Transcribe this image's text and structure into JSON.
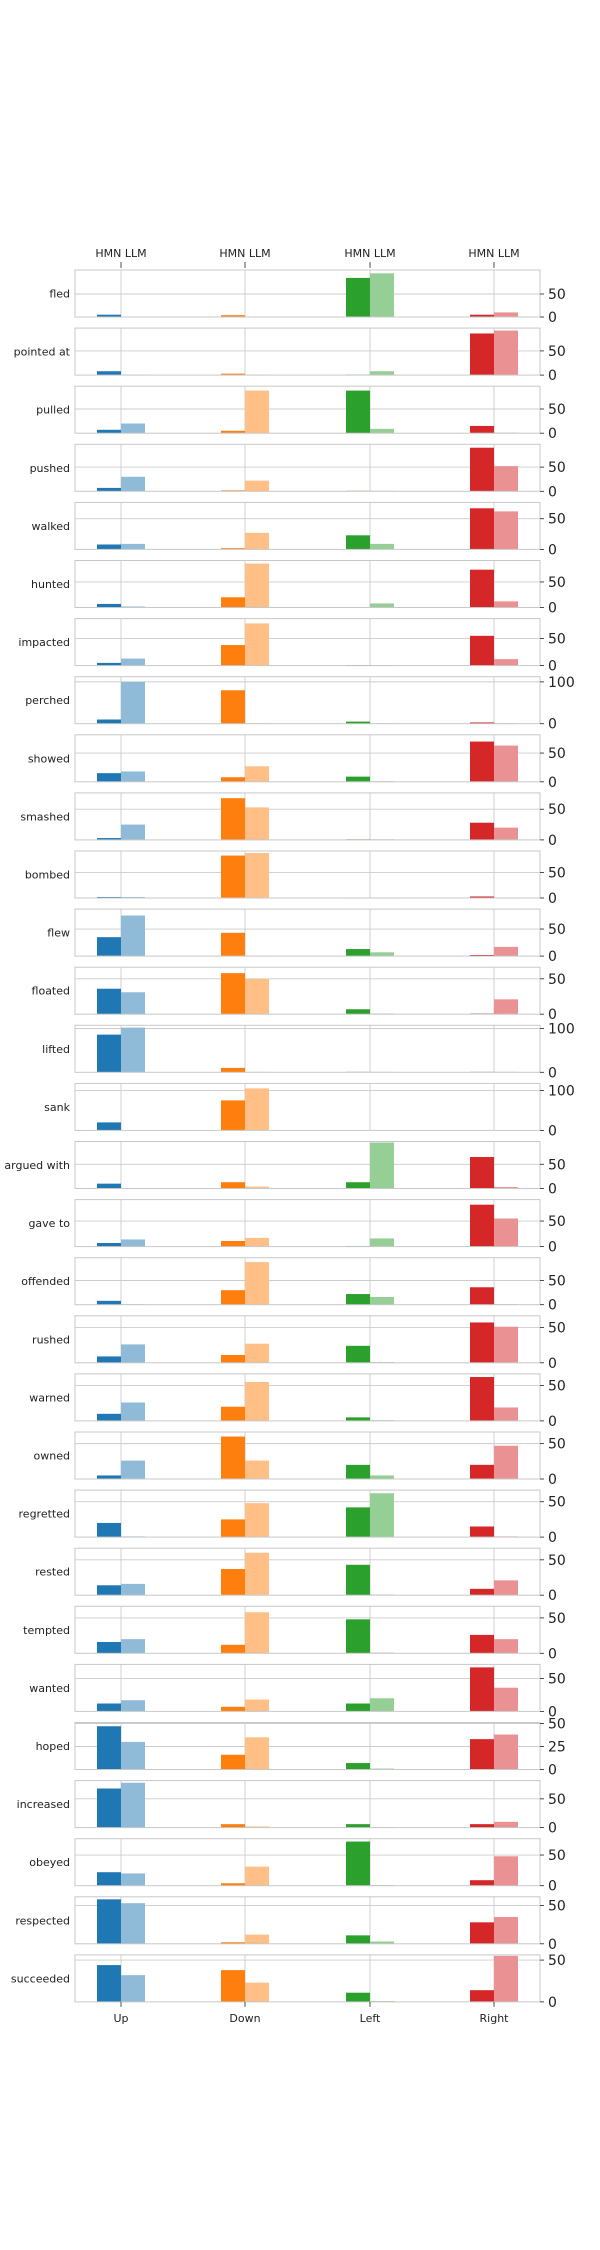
{
  "chart_data": {
    "type": "bar",
    "categories": [
      "Up",
      "Down",
      "Left",
      "Right"
    ],
    "top_tick_label": "HMN LLM",
    "series": [
      {
        "name": "HMN"
      },
      {
        "name": "LLM"
      }
    ],
    "colors": {
      "Up": [
        "#1f77b4",
        "#8fbbd9"
      ],
      "Down": [
        "#ff7f0e",
        "#ffbf86"
      ],
      "Left": [
        "#2ca02c",
        "#95cf95"
      ],
      "Right": [
        "#d62728",
        "#ea9293"
      ]
    },
    "grid": true,
    "rows": [
      {
        "label": "fled",
        "yticks": [
          0,
          50
        ],
        "ymax": 100,
        "values": [
          [
            5,
            1
          ],
          [
            4,
            1
          ],
          [
            85,
            95
          ],
          [
            5,
            10
          ]
        ]
      },
      {
        "label": "pointed at",
        "yticks": [
          0,
          50
        ],
        "ymax": 95,
        "values": [
          [
            8,
            1
          ],
          [
            3,
            1
          ],
          [
            1,
            8
          ],
          [
            86,
            92
          ]
        ]
      },
      {
        "label": "pulled",
        "yticks": [
          0,
          50
        ],
        "ymax": 95,
        "values": [
          [
            7,
            20
          ],
          [
            5,
            88
          ],
          [
            88,
            9
          ],
          [
            15,
            1
          ]
        ]
      },
      {
        "label": "pushed",
        "yticks": [
          0,
          50
        ],
        "ymax": 95,
        "values": [
          [
            7,
            30
          ],
          [
            2,
            22
          ],
          [
            1,
            1
          ],
          [
            90,
            52
          ]
        ]
      },
      {
        "label": "walked",
        "yticks": [
          0,
          50
        ],
        "ymax": 75,
        "values": [
          [
            8,
            9
          ],
          [
            2,
            27
          ],
          [
            23,
            9
          ],
          [
            67,
            62
          ]
        ]
      },
      {
        "label": "hunted",
        "yticks": [
          0,
          50
        ],
        "ymax": 90,
        "values": [
          [
            7,
            2
          ],
          [
            20,
            86
          ],
          [
            1,
            8
          ],
          [
            74,
            12
          ]
        ]
      },
      {
        "label": "impacted",
        "yticks": [
          0,
          50
        ],
        "ymax": 85,
        "values": [
          [
            5,
            13
          ],
          [
            38,
            78
          ],
          [
            1,
            1
          ],
          [
            55,
            12
          ]
        ]
      },
      {
        "label": "perched",
        "yticks": [
          0,
          100
        ],
        "ymax": 110,
        "values": [
          [
            10,
            100
          ],
          [
            80,
            1
          ],
          [
            5,
            1
          ],
          [
            3,
            1
          ]
        ]
      },
      {
        "label": "showed",
        "yticks": [
          0,
          50
        ],
        "ymax": 80,
        "values": [
          [
            15,
            18
          ],
          [
            8,
            27
          ],
          [
            9,
            1
          ],
          [
            70,
            63
          ]
        ]
      },
      {
        "label": "smashed",
        "yticks": [
          0,
          50
        ],
        "ymax": 75,
        "values": [
          [
            3,
            25
          ],
          [
            68,
            53
          ],
          [
            1,
            1
          ],
          [
            28,
            20
          ]
        ]
      },
      {
        "label": "bombed",
        "yticks": [
          0,
          50
        ],
        "ymax": 90,
        "values": [
          [
            2,
            2
          ],
          [
            83,
            88
          ],
          [
            1,
            1
          ],
          [
            3,
            1
          ]
        ]
      },
      {
        "label": "flew",
        "yticks": [
          0,
          50
        ],
        "ymax": 85,
        "values": [
          [
            35,
            75
          ],
          [
            43,
            1
          ],
          [
            13,
            7
          ],
          [
            2,
            17
          ]
        ]
      },
      {
        "label": "floated",
        "yticks": [
          0,
          50
        ],
        "ymax": 65,
        "values": [
          [
            36,
            31
          ],
          [
            58,
            50
          ],
          [
            7,
            1
          ],
          [
            1,
            21
          ]
        ]
      },
      {
        "label": "lifted",
        "yticks": [
          0,
          100
        ],
        "ymax": 105,
        "values": [
          [
            86,
            102
          ],
          [
            10,
            1
          ],
          [
            1,
            1
          ],
          [
            1,
            1
          ]
        ]
      },
      {
        "label": "sank",
        "yticks": [
          0,
          100
        ],
        "ymax": 115,
        "values": [
          [
            20,
            1
          ],
          [
            75,
            105
          ],
          [
            1,
            1
          ],
          [
            1,
            1
          ]
        ]
      },
      {
        "label": "argued with",
        "yticks": [
          0,
          50
        ],
        "ymax": 95,
        "values": [
          [
            10,
            1
          ],
          [
            13,
            4
          ],
          [
            13,
            95
          ],
          [
            65,
            3
          ]
        ]
      },
      {
        "label": "gave to",
        "yticks": [
          0,
          50
        ],
        "ymax": 90,
        "values": [
          [
            7,
            14
          ],
          [
            11,
            17
          ],
          [
            1,
            16
          ],
          [
            82,
            55
          ]
        ]
      },
      {
        "label": "offended",
        "yticks": [
          0,
          50
        ],
        "ymax": 95,
        "values": [
          [
            8,
            1
          ],
          [
            30,
            88
          ],
          [
            22,
            16
          ],
          [
            36,
            1
          ]
        ]
      },
      {
        "label": "rushed",
        "yticks": [
          0,
          50
        ],
        "ymax": 65,
        "values": [
          [
            9,
            26
          ],
          [
            11,
            27
          ],
          [
            24,
            1
          ],
          [
            57,
            51
          ]
        ]
      },
      {
        "label": "warned",
        "yticks": [
          0,
          50
        ],
        "ymax": 65,
        "values": [
          [
            10,
            26
          ],
          [
            20,
            55
          ],
          [
            5,
            1
          ],
          [
            62,
            19
          ]
        ]
      },
      {
        "label": "owned",
        "yticks": [
          0,
          50
        ],
        "ymax": 65,
        "values": [
          [
            5,
            26
          ],
          [
            60,
            26
          ],
          [
            20,
            5
          ],
          [
            20,
            47
          ]
        ]
      },
      {
        "label": "regretted",
        "yticks": [
          0,
          50
        ],
        "ymax": 65,
        "values": [
          [
            20,
            1
          ],
          [
            25,
            48
          ],
          [
            42,
            62
          ],
          [
            15,
            1
          ]
        ]
      },
      {
        "label": "rested",
        "yticks": [
          0,
          50
        ],
        "ymax": 65,
        "values": [
          [
            14,
            16
          ],
          [
            37,
            60
          ],
          [
            43,
            1
          ],
          [
            9,
            21
          ]
        ]
      },
      {
        "label": "tempted",
        "yticks": [
          0,
          50
        ],
        "ymax": 65,
        "values": [
          [
            16,
            20
          ],
          [
            12,
            58
          ],
          [
            48,
            1
          ],
          [
            26,
            20
          ]
        ]
      },
      {
        "label": "wanted",
        "yticks": [
          0,
          50
        ],
        "ymax": 70,
        "values": [
          [
            12,
            17
          ],
          [
            7,
            18
          ],
          [
            12,
            20
          ],
          [
            67,
            36
          ]
        ]
      },
      {
        "label": "hoped",
        "yticks": [
          0,
          25,
          50
        ],
        "ymax": 50,
        "values": [
          [
            47,
            30
          ],
          [
            16,
            35
          ],
          [
            7,
            1
          ],
          [
            33,
            38
          ]
        ]
      },
      {
        "label": "increased",
        "yticks": [
          0,
          50
        ],
        "ymax": 80,
        "values": [
          [
            68,
            78
          ],
          [
            6,
            2
          ],
          [
            6,
            1
          ],
          [
            6,
            10
          ]
        ]
      },
      {
        "label": "obeyed",
        "yticks": [
          0,
          50
        ],
        "ymax": 75,
        "values": [
          [
            22,
            20
          ],
          [
            4,
            31
          ],
          [
            72,
            1
          ],
          [
            9,
            48
          ]
        ]
      },
      {
        "label": "respected",
        "yticks": [
          0,
          50
        ],
        "ymax": 60,
        "values": [
          [
            58,
            53
          ],
          [
            2,
            12
          ],
          [
            11,
            3
          ],
          [
            28,
            35
          ]
        ]
      },
      {
        "label": "succeeded",
        "yticks": [
          0,
          50
        ],
        "ymax": 55,
        "values": [
          [
            44,
            32
          ],
          [
            38,
            23
          ],
          [
            11,
            1
          ],
          [
            14,
            55
          ]
        ]
      }
    ]
  }
}
